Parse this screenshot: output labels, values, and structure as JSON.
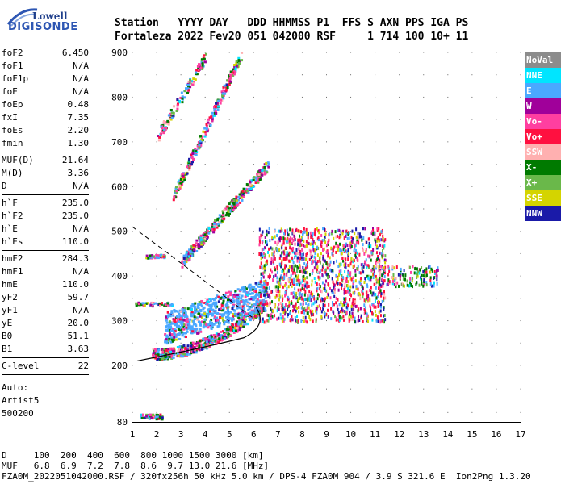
{
  "logo": {
    "top": "Lowell",
    "bottom": "DIGISONDE"
  },
  "header": {
    "line1": "Station   YYYY DAY   DDD HHMMSS P1  FFS S AXN PPS IGA PS",
    "line2": "Fortaleza 2022 Fev20 051 042000 RSF     1 714 100 10+ 11"
  },
  "params": [
    {
      "name": "foF2",
      "value": "6.450"
    },
    {
      "name": "foF1",
      "value": "N/A"
    },
    {
      "name": "foF1p",
      "value": "N/A"
    },
    {
      "name": "foE",
      "value": "N/A"
    },
    {
      "name": "foEp",
      "value": "0.48"
    },
    {
      "name": "fxI",
      "value": "7.35"
    },
    {
      "name": "foEs",
      "value": "2.20"
    },
    {
      "name": "fmin",
      "value": "1.30"
    },
    {
      "name": "MUF(D)",
      "value": "21.64"
    },
    {
      "name": "M(D)",
      "value": "3.36"
    },
    {
      "name": "D",
      "value": "N/A"
    },
    {
      "name": "h`F",
      "value": "235.0"
    },
    {
      "name": "h`F2",
      "value": "235.0"
    },
    {
      "name": "h`E",
      "value": "N/A"
    },
    {
      "name": "h`Es",
      "value": "110.0"
    },
    {
      "name": "hmF2",
      "value": "284.3"
    },
    {
      "name": "hmF1",
      "value": "N/A"
    },
    {
      "name": "hmE",
      "value": "110.0"
    },
    {
      "name": "yF2",
      "value": "59.7"
    },
    {
      "name": "yF1",
      "value": "N/A"
    },
    {
      "name": "yE",
      "value": "20.0"
    },
    {
      "name": "B0",
      "value": "51.1"
    },
    {
      "name": "B1",
      "value": "3.63"
    },
    {
      "name": "C-level",
      "value": "22"
    }
  ],
  "auto": {
    "line1": "Auto:",
    "line2": "Artist5",
    "line3": "500200"
  },
  "legend": [
    {
      "label": "NoVal",
      "color": "#8c8c8c"
    },
    {
      "label": "NNE",
      "color": "#00e5ff"
    },
    {
      "label": "E",
      "color": "#4aa8ff"
    },
    {
      "label": "W",
      "color": "#a0009a"
    },
    {
      "label": "Vo-",
      "color": "#ff3fa0"
    },
    {
      "label": "Vo+",
      "color": "#ff1040"
    },
    {
      "label": "SSW",
      "color": "#ffb0b0"
    },
    {
      "label": "X-",
      "color": "#007a00"
    },
    {
      "label": "X+",
      "color": "#6ab84a"
    },
    {
      "label": "SSE",
      "color": "#d4d400"
    },
    {
      "label": "NNW",
      "color": "#1a1aa8"
    }
  ],
  "axes": {
    "x_ticks": [
      "1",
      "2",
      "3",
      "4",
      "5",
      "6",
      "7",
      "8",
      "9",
      "10",
      "11",
      "12",
      "13",
      "14",
      "15",
      "16",
      "17"
    ],
    "y_ticks": [
      "900",
      "800",
      "700",
      "600",
      "500",
      "400",
      "300",
      "200",
      "80"
    ]
  },
  "footer": {
    "line1": "D     100  200  400  600  800 1000 1500 3000 [km]",
    "line2": "MUF   6.8  6.9  7.2  7.8  8.6  9.7 13.0 21.6 [MHz]",
    "line3": "FZA0M_2022051042000.RSF / 320fx256h 50 kHz 5.0 km / DPS-4 FZA0M 904 / 3.9 S 321.6 E  Ion2Png 1.3.20"
  }
}
